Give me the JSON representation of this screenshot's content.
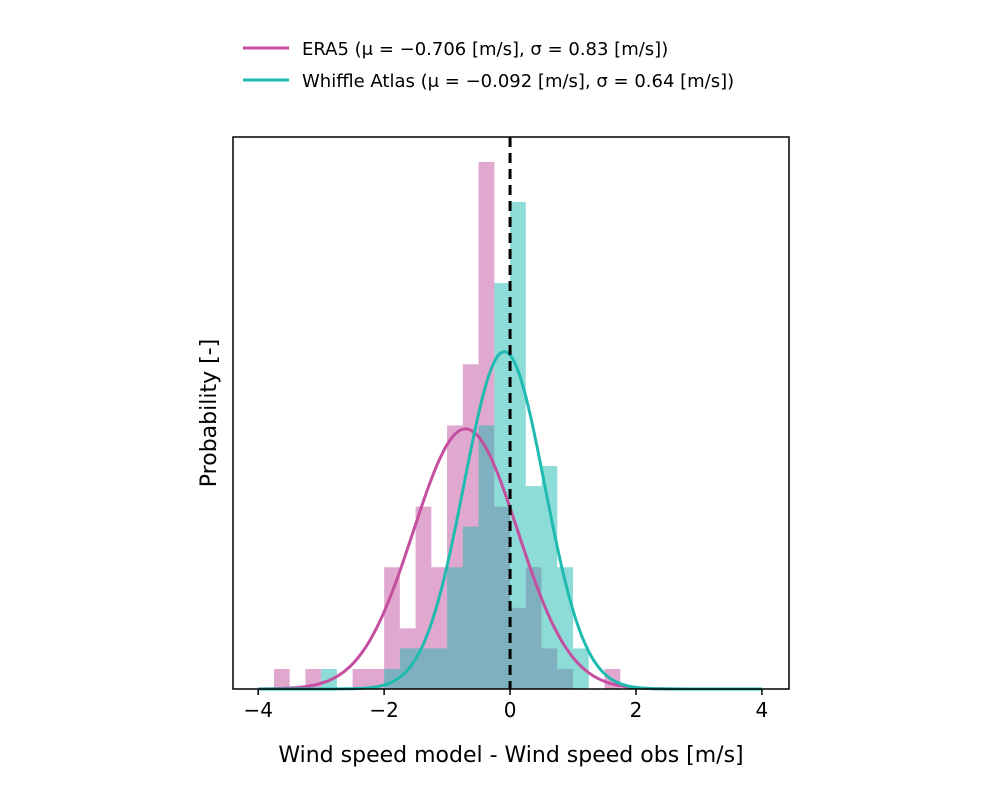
{
  "chart_data": {
    "type": "histogram",
    "xlabel": "Wind speed model - Wind speed obs [m/s]",
    "ylabel": "Probability [-]",
    "xlim": [
      -4.4,
      4.43
    ],
    "ylim": [
      0,
      1.02
    ],
    "xticks": [
      -4,
      -2,
      0,
      2,
      4
    ],
    "xtick_labels": [
      "−4",
      "−2",
      "0",
      "2",
      "4"
    ],
    "yticks": [],
    "grid": false,
    "legend_position": "top-center-outside",
    "reference_line": {
      "x": 0,
      "style": "dashed",
      "color": "#000000"
    },
    "bin_width": 0.25,
    "series": [
      {
        "name": "ERA5",
        "legend_label": "ERA5 (μ = −0.706 [m/s], σ = 0.83 [m/s])",
        "mu": -0.706,
        "sigma": 0.83,
        "line_color": "#c44fa0",
        "fill_color": "#c2509f",
        "bin_edges_start": [
          -3.75,
          -3.5,
          -3.25,
          -3.0,
          -2.75,
          -2.5,
          -2.25,
          -2.0,
          -1.75,
          -1.5,
          -1.25,
          -1.0,
          -0.75,
          -0.5,
          -0.25,
          0.0,
          0.25,
          0.5,
          0.75,
          1.0,
          1.25,
          1.5
        ],
        "density": [
          0.037,
          0,
          0.037,
          0,
          0,
          0.037,
          0.037,
          0.225,
          0.112,
          0.337,
          0.225,
          0.487,
          0.6,
          0.974,
          0.337,
          0.15,
          0.225,
          0.075,
          0.037,
          0,
          0,
          0.037
        ]
      },
      {
        "name": "Whiffle Atlas",
        "legend_label": "Whiffle Atlas (μ = −0.092 [m/s], σ = 0.64 [m/s])",
        "mu": -0.092,
        "sigma": 0.64,
        "line_color": "#1fbbb0",
        "fill_color": "#1ebaaf",
        "bin_edges_start": [
          -3.0,
          -2.0,
          -1.75,
          -1.5,
          -1.25,
          -1.0,
          -0.75,
          -0.5,
          -0.25,
          0.0,
          0.25,
          0.5,
          0.75,
          1.0
        ],
        "density": [
          0.037,
          0.037,
          0.075,
          0.075,
          0.075,
          0.225,
          0.3,
          0.487,
          0.75,
          0.9,
          0.375,
          0.412,
          0.225,
          0.075
        ]
      }
    ]
  }
}
